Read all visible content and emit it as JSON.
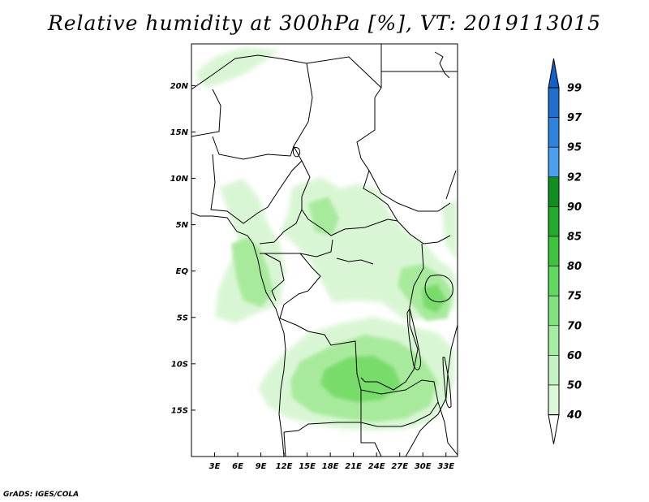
{
  "title": "Relative humidity at 300hPa [%], VT: 2019113015",
  "credit": "GrADS: IGES/COLA",
  "lat_labels": [
    "20N",
    "15N",
    "10N",
    "5N",
    "EQ",
    "5S",
    "10S",
    "15S"
  ],
  "lat_values": [
    20,
    15,
    10,
    5,
    0,
    -5,
    -10,
    -15
  ],
  "lon_labels": [
    "3E",
    "6E",
    "9E",
    "12E",
    "15E",
    "18E",
    "21E",
    "24E",
    "27E",
    "30E",
    "33E"
  ],
  "lon_values": [
    3,
    6,
    9,
    12,
    15,
    18,
    21,
    24,
    27,
    30,
    33
  ],
  "extent": {
    "lon_min": 0,
    "lon_max": 34.5,
    "lat_min": -20,
    "lat_max": 24.5
  },
  "colorbar": {
    "levels": [
      "99",
      "97",
      "95",
      "92",
      "90",
      "85",
      "80",
      "75",
      "70",
      "60",
      "50",
      "40"
    ],
    "colors_top_to_bottom": [
      "#1e6fd0",
      "#2f83e0",
      "#4aa0ee",
      "#0f8f1f",
      "#22aa2a",
      "#3cc43c",
      "#5fd95f",
      "#7fe47f",
      "#a5eca5",
      "#c3f3c3",
      "#daf7da",
      "#edfbed"
    ],
    "triangle_top": "#1560c8",
    "triangle_bottom": "#ffffff"
  },
  "colors": {
    "humid_light": "#d9f6d4",
    "humid_mid": "#a8ea9c",
    "humid_strong": "#78dc6a",
    "border": "#000000"
  }
}
